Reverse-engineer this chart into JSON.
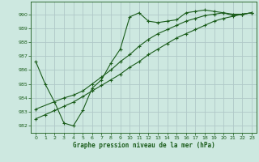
{
  "bg_color": "#cde8e0",
  "grid_color": "#b0c8c8",
  "line_color": "#1a5c1a",
  "xlabel": "Graphe pression niveau de la mer (hPa)",
  "ylim": [
    981.5,
    990.9
  ],
  "yticks": [
    982,
    983,
    984,
    985,
    986,
    987,
    988,
    989,
    990
  ],
  "xlim": [
    -0.5,
    23.5
  ],
  "xticks": [
    0,
    1,
    2,
    3,
    4,
    5,
    6,
    7,
    8,
    9,
    10,
    11,
    12,
    13,
    14,
    15,
    16,
    17,
    18,
    19,
    20,
    21,
    22,
    23
  ],
  "line1_x": [
    0,
    1,
    2,
    3,
    4,
    5,
    6,
    7,
    8,
    9,
    10,
    11,
    12,
    13,
    14,
    15,
    16,
    17,
    18,
    19,
    20,
    21,
    22,
    23
  ],
  "line1_y": [
    986.6,
    985.0,
    983.7,
    982.2,
    982.0,
    983.1,
    984.7,
    985.3,
    986.5,
    987.5,
    989.8,
    990.1,
    989.5,
    989.4,
    989.5,
    989.6,
    990.1,
    990.2,
    990.3,
    990.2,
    990.1,
    989.9,
    990.0,
    990.1
  ],
  "line2_x": [
    0,
    3,
    4,
    5,
    6,
    7,
    8,
    9,
    10,
    11,
    12,
    13,
    14,
    15,
    16,
    17,
    18,
    19,
    20,
    21,
    22,
    23
  ],
  "line2_y": [
    983.2,
    984.0,
    984.2,
    984.5,
    985.0,
    985.5,
    986.0,
    986.6,
    987.1,
    987.7,
    988.2,
    988.6,
    988.9,
    989.2,
    989.5,
    989.7,
    989.9,
    990.0,
    990.1,
    990.0,
    990.0,
    990.1
  ],
  "line3_x": [
    0,
    1,
    2,
    3,
    4,
    5,
    6,
    7,
    8,
    9,
    10,
    11,
    12,
    13,
    14,
    15,
    16,
    17,
    18,
    19,
    20,
    21,
    22,
    23
  ],
  "line3_y": [
    982.5,
    982.8,
    983.1,
    983.4,
    983.7,
    984.1,
    984.5,
    984.9,
    985.3,
    985.7,
    986.2,
    986.6,
    987.1,
    987.5,
    987.9,
    988.3,
    988.6,
    988.9,
    989.2,
    989.5,
    989.7,
    989.85,
    990.0,
    990.1
  ]
}
